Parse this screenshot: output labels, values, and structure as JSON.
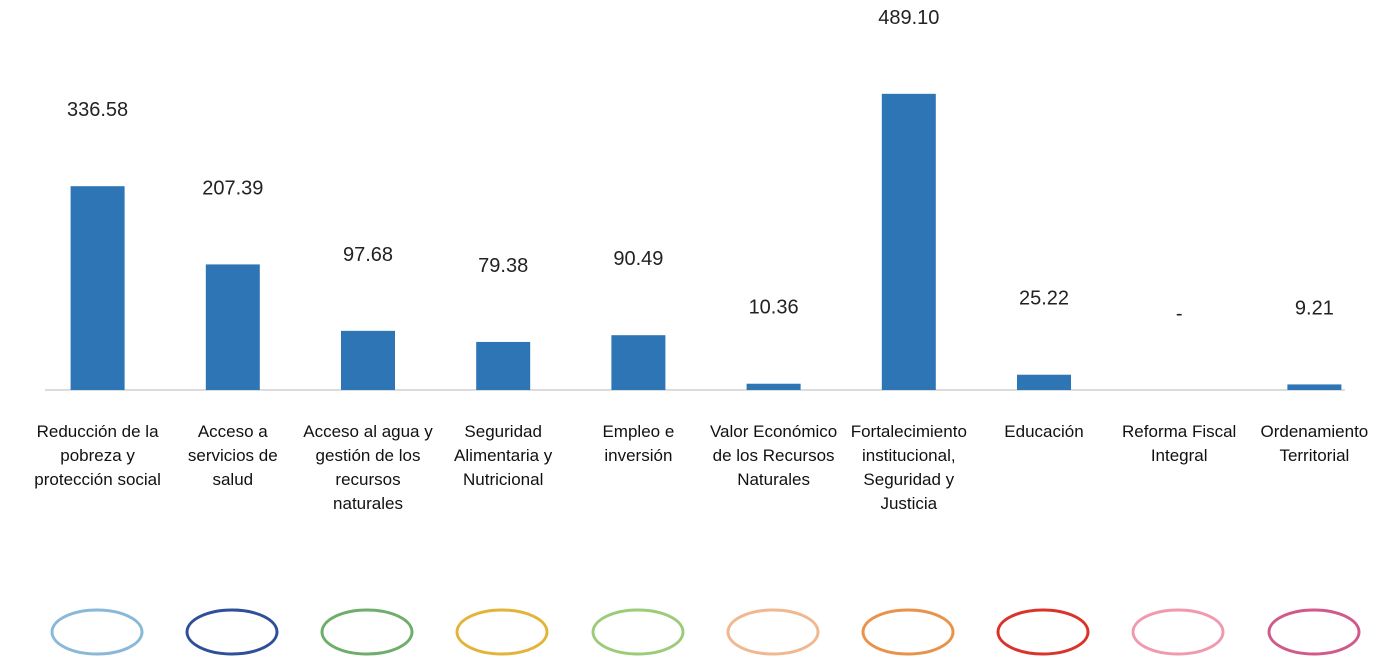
{
  "chart_data": {
    "type": "bar",
    "categories": [
      "Reducción de la pobreza y protección social",
      "Acceso a servicios de salud",
      "Acceso al agua y gestión de los recursos naturales",
      "Seguridad Alimentaria y Nutricional",
      "Empleo e inversión",
      "Valor Económico de los Recursos Naturales",
      "Fortalecimiento institucional, Seguridad y Justicia",
      "Educación",
      "Reforma Fiscal Integral",
      "Ordenamiento Territorial"
    ],
    "values": [
      336.58,
      207.39,
      97.68,
      79.38,
      90.49,
      10.36,
      489.1,
      25.22,
      null,
      9.21
    ],
    "value_labels": [
      "336.58",
      "207.39",
      "97.68",
      "79.38",
      "90.49",
      "10.36",
      "489.10",
      "25.22",
      "-",
      "9.21"
    ],
    "color": "#2e75b6",
    "ylim": [
      0,
      540
    ]
  }
}
